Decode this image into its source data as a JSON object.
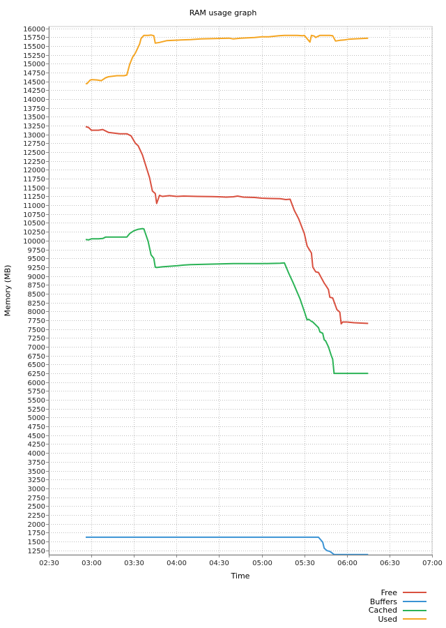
{
  "chart_data": {
    "type": "line",
    "title": "RAM usage graph",
    "xlabel": "Time",
    "ylabel": "Memory (MB)",
    "x_ticks": [
      "02:30",
      "03:00",
      "03:30",
      "04:00",
      "04:30",
      "05:00",
      "05:30",
      "06:00",
      "06:30",
      "07:00"
    ],
    "xlim": [
      "02:30",
      "07:00"
    ],
    "ylim": [
      1125,
      16050
    ],
    "y_ticks": [
      1250,
      1500,
      1750,
      2000,
      2250,
      2500,
      2750,
      3000,
      3250,
      3500,
      3750,
      4000,
      4250,
      4500,
      4750,
      5000,
      5250,
      5500,
      5750,
      6000,
      6250,
      6500,
      6750,
      7000,
      7250,
      7500,
      7750,
      8000,
      8250,
      8500,
      8750,
      9000,
      9250,
      9500,
      9750,
      10000,
      10250,
      10500,
      10750,
      11000,
      11250,
      11500,
      11750,
      12000,
      12250,
      12500,
      12750,
      13000,
      13250,
      13500,
      13750,
      14000,
      14250,
      14500,
      14750,
      15000,
      15250,
      15500,
      15750,
      16000
    ],
    "grid": true,
    "legend_position": "bottom-right",
    "series": [
      {
        "name": "Free",
        "color": "#d9503f",
        "points": [
          [
            "02:56",
            13220
          ],
          [
            "02:58",
            13200
          ],
          [
            "03:00",
            13120
          ],
          [
            "03:05",
            13120
          ],
          [
            "03:08",
            13140
          ],
          [
            "03:12",
            13060
          ],
          [
            "03:18",
            13030
          ],
          [
            "03:20",
            13020
          ],
          [
            "03:25",
            13020
          ],
          [
            "03:28",
            12960
          ],
          [
            "03:31",
            12750
          ],
          [
            "03:33",
            12680
          ],
          [
            "03:36",
            12420
          ],
          [
            "03:41",
            11780
          ],
          [
            "03:43",
            11400
          ],
          [
            "03:45",
            11330
          ],
          [
            "03:46",
            11050
          ],
          [
            "03:48",
            11280
          ],
          [
            "03:50",
            11250
          ],
          [
            "03:55",
            11270
          ],
          [
            "04:00",
            11250
          ],
          [
            "04:05",
            11260
          ],
          [
            "04:15",
            11250
          ],
          [
            "04:25",
            11245
          ],
          [
            "04:30",
            11240
          ],
          [
            "04:35",
            11230
          ],
          [
            "04:40",
            11240
          ],
          [
            "04:43",
            11260
          ],
          [
            "04:47",
            11230
          ],
          [
            "04:55",
            11220
          ],
          [
            "05:00",
            11200
          ],
          [
            "05:07",
            11190
          ],
          [
            "05:13",
            11185
          ],
          [
            "05:17",
            11160
          ],
          [
            "05:20",
            11170
          ],
          [
            "05:23",
            10850
          ],
          [
            "05:26",
            10620
          ],
          [
            "05:30",
            10200
          ],
          [
            "05:32",
            9850
          ],
          [
            "05:35",
            9650
          ],
          [
            "05:36",
            9250
          ],
          [
            "05:38",
            9120
          ],
          [
            "05:40",
            9100
          ],
          [
            "05:44",
            8800
          ],
          [
            "05:46",
            8680
          ],
          [
            "05:47",
            8620
          ],
          [
            "05:48",
            8400
          ],
          [
            "05:50",
            8380
          ],
          [
            "05:53",
            8050
          ],
          [
            "05:55",
            7980
          ],
          [
            "05:56",
            7650
          ],
          [
            "05:57",
            7700
          ],
          [
            "06:00",
            7700
          ],
          [
            "06:05",
            7680
          ],
          [
            "06:10",
            7670
          ],
          [
            "06:15",
            7660
          ]
        ]
      },
      {
        "name": "Buffers",
        "color": "#3a93d4",
        "points": [
          [
            "02:56",
            1620
          ],
          [
            "03:30",
            1620
          ],
          [
            "04:00",
            1620
          ],
          [
            "04:30",
            1620
          ],
          [
            "05:00",
            1620
          ],
          [
            "05:30",
            1620
          ],
          [
            "05:40",
            1620
          ],
          [
            "05:43",
            1480
          ],
          [
            "05:44",
            1310
          ],
          [
            "05:46",
            1240
          ],
          [
            "05:48",
            1220
          ],
          [
            "05:50",
            1160
          ],
          [
            "05:51",
            1130
          ],
          [
            "05:55",
            1130
          ],
          [
            "06:00",
            1130
          ],
          [
            "06:05",
            1130
          ],
          [
            "06:10",
            1130
          ],
          [
            "06:15",
            1130
          ]
        ]
      },
      {
        "name": "Cached",
        "color": "#2bb356",
        "points": [
          [
            "02:56",
            10030
          ],
          [
            "02:58",
            10020
          ],
          [
            "03:00",
            10050
          ],
          [
            "03:05",
            10050
          ],
          [
            "03:08",
            10060
          ],
          [
            "03:10",
            10100
          ],
          [
            "03:15",
            10100
          ],
          [
            "03:20",
            10100
          ],
          [
            "03:23",
            10100
          ],
          [
            "03:25",
            10100
          ],
          [
            "03:27",
            10200
          ],
          [
            "03:30",
            10280
          ],
          [
            "03:33",
            10320
          ],
          [
            "03:36",
            10340
          ],
          [
            "03:37",
            10330
          ],
          [
            "03:40",
            9980
          ],
          [
            "03:42",
            9600
          ],
          [
            "03:44",
            9500
          ],
          [
            "03:45",
            9250
          ],
          [
            "03:46",
            9240
          ],
          [
            "03:50",
            9260
          ],
          [
            "04:00",
            9290
          ],
          [
            "04:05",
            9310
          ],
          [
            "04:10",
            9320
          ],
          [
            "04:20",
            9330
          ],
          [
            "04:30",
            9340
          ],
          [
            "04:40",
            9350
          ],
          [
            "05:00",
            9350
          ],
          [
            "05:13",
            9360
          ],
          [
            "05:16",
            9370
          ],
          [
            "05:19",
            9080
          ],
          [
            "05:22",
            8820
          ],
          [
            "05:27",
            8350
          ],
          [
            "05:30",
            8000
          ],
          [
            "05:32",
            7760
          ],
          [
            "05:33",
            7780
          ],
          [
            "05:35",
            7720
          ],
          [
            "05:36",
            7700
          ],
          [
            "05:38",
            7620
          ],
          [
            "05:40",
            7540
          ],
          [
            "05:41",
            7420
          ],
          [
            "05:43",
            7380
          ],
          [
            "05:44",
            7200
          ],
          [
            "05:45",
            7170
          ],
          [
            "05:47",
            7000
          ],
          [
            "05:49",
            6750
          ],
          [
            "05:50",
            6650
          ],
          [
            "05:51",
            6250
          ],
          [
            "06:00",
            6250
          ],
          [
            "06:10",
            6250
          ],
          [
            "06:15",
            6250
          ]
        ]
      },
      {
        "name": "Used",
        "color": "#f5a623",
        "points": [
          [
            "02:56",
            14430
          ],
          [
            "02:57",
            14440
          ],
          [
            "02:59",
            14530
          ],
          [
            "03:00",
            14550
          ],
          [
            "03:04",
            14540
          ],
          [
            "03:07",
            14520
          ],
          [
            "03:10",
            14600
          ],
          [
            "03:12",
            14630
          ],
          [
            "03:14",
            14640
          ],
          [
            "03:18",
            14660
          ],
          [
            "03:23",
            14660
          ],
          [
            "03:25",
            14680
          ],
          [
            "03:27",
            14980
          ],
          [
            "03:29",
            15180
          ],
          [
            "03:31",
            15300
          ],
          [
            "03:34",
            15560
          ],
          [
            "03:35",
            15710
          ],
          [
            "03:37",
            15800
          ],
          [
            "03:40",
            15800
          ],
          [
            "03:42",
            15810
          ],
          [
            "03:44",
            15790
          ],
          [
            "03:45",
            15580
          ],
          [
            "03:48",
            15600
          ],
          [
            "03:53",
            15650
          ],
          [
            "03:58",
            15660
          ],
          [
            "04:03",
            15670
          ],
          [
            "04:10",
            15680
          ],
          [
            "04:17",
            15700
          ],
          [
            "04:27",
            15710
          ],
          [
            "04:37",
            15720
          ],
          [
            "04:40",
            15700
          ],
          [
            "04:45",
            15720
          ],
          [
            "04:55",
            15740
          ],
          [
            "05:00",
            15760
          ],
          [
            "05:05",
            15760
          ],
          [
            "05:12",
            15790
          ],
          [
            "05:16",
            15800
          ],
          [
            "05:20",
            15800
          ],
          [
            "05:25",
            15800
          ],
          [
            "05:29",
            15790
          ],
          [
            "05:30",
            15800
          ],
          [
            "05:34",
            15610
          ],
          [
            "05:35",
            15800
          ],
          [
            "05:37",
            15780
          ],
          [
            "05:38",
            15740
          ],
          [
            "05:41",
            15800
          ],
          [
            "05:45",
            15800
          ],
          [
            "05:48",
            15800
          ],
          [
            "05:50",
            15790
          ],
          [
            "05:52",
            15640
          ],
          [
            "05:55",
            15660
          ],
          [
            "05:58",
            15670
          ],
          [
            "06:01",
            15690
          ],
          [
            "06:05",
            15700
          ],
          [
            "06:10",
            15710
          ],
          [
            "06:15",
            15720
          ]
        ]
      }
    ]
  }
}
